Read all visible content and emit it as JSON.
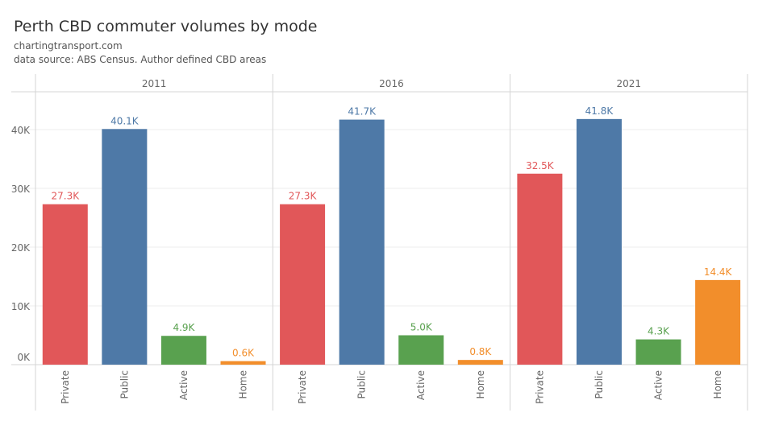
{
  "chart_data": {
    "type": "bar",
    "title": "Perth CBD commuter volumes by mode",
    "subtitle": [
      "chartingtransport.com",
      "data source: ABS Census. Author defined CBD areas"
    ],
    "panels": [
      "2011",
      "2016",
      "2021"
    ],
    "categories": [
      "Private",
      "Public",
      "Active",
      "Home"
    ],
    "colors": [
      "#e15759",
      "#4e79a7",
      "#59a14f",
      "#f28e2b"
    ],
    "values": [
      [
        27.3,
        40.1,
        4.9,
        0.6
      ],
      [
        27.3,
        41.7,
        5.0,
        0.8
      ],
      [
        32.5,
        41.8,
        4.3,
        14.4
      ]
    ],
    "value_labels": [
      [
        "27.3K",
        "40.1K",
        "4.9K",
        "0.6K"
      ],
      [
        "27.3K",
        "41.7K",
        "5.0K",
        "0.8K"
      ],
      [
        "32.5K",
        "41.8K",
        "4.3K",
        "14.4K"
      ]
    ],
    "unit": "thousands",
    "yticks": [
      0,
      10,
      20,
      30,
      40
    ],
    "ytick_labels": [
      "0K",
      "10K",
      "20K",
      "30K",
      "40K"
    ],
    "ylim": [
      0,
      46
    ],
    "grid": true
  }
}
